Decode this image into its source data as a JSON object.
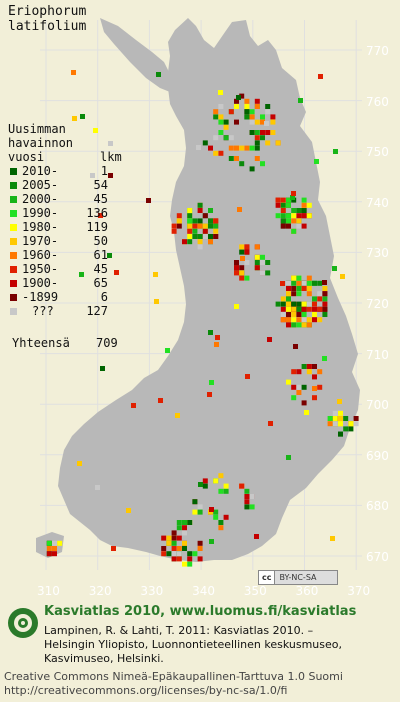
{
  "map": {
    "species_line1": "Eriophorum",
    "species_line2": "latifolium",
    "y_ticks": [
      "770",
      "760",
      "750",
      "740",
      "730",
      "720",
      "710",
      "700",
      "690",
      "680",
      "670"
    ],
    "x_ticks": [
      "310",
      "320",
      "330",
      "340",
      "350",
      "360",
      "370"
    ],
    "colors": {
      "background": "#f2efd8",
      "land": "#b8b8b8",
      "grid": "#e0e0e0",
      "text_light": "#ffffff"
    }
  },
  "legend": {
    "heading_line1": "Uusimman",
    "heading_line2": "havainnon",
    "heading_line3": "vuosi",
    "count_heading": "lkm",
    "rows": [
      {
        "label": "2010-",
        "count": "1",
        "color": "#006400"
      },
      {
        "label": "2005-",
        "count": "54",
        "color": "#0a8a0a"
      },
      {
        "label": "2000-",
        "count": "45",
        "color": "#18b418"
      },
      {
        "label": "1990-",
        "count": "136",
        "color": "#22e022"
      },
      {
        "label": "1980-",
        "count": "119",
        "color": "#ffff00"
      },
      {
        "label": "1970-",
        "count": "50",
        "color": "#ffc800"
      },
      {
        "label": "1960-",
        "count": "61",
        "color": "#ff7800"
      },
      {
        "label": "1950-",
        "count": "45",
        "color": "#e02000"
      },
      {
        "label": "1900-",
        "count": "65",
        "color": "#c40000"
      },
      {
        "label": "-1899",
        "count": "6",
        "color": "#7a0000"
      },
      {
        "label": "???",
        "count": "127",
        "color": "#c8c8c8"
      }
    ],
    "total_label": "Yhteensä",
    "total_count": "709"
  },
  "badge": {
    "cc": "cc",
    "license": "BY-NC-SA"
  },
  "footer": {
    "title": "Kasviatlas 2010, www.luomus.fi/kasviatlas",
    "citation_line1": "Lampinen, R. & Lahti, T. 2011: Kasviatlas 2010. –",
    "citation_line2": "Helsingin Yliopisto, Luonnontieteellinen keskusmuseo,",
    "citation_line3": "Kasvimuseo, Helsinki.",
    "license_line1": "Creative Commons Nimeä-Epäkaupallinen-Tarttuva 1.0 Suomi",
    "license_line2": "http://creativecommons.org/licenses/by-nc-sa/1.0/fi",
    "logo_color": "#2b7a2b"
  }
}
